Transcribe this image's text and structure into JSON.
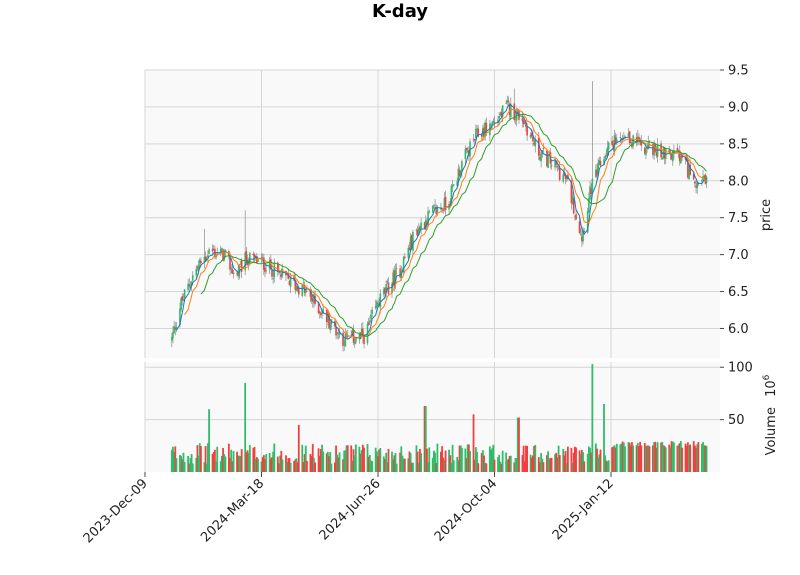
{
  "chart_data": {
    "title": "K-day",
    "type": "candlestick",
    "x_ticks": [
      "2023-Dec-09",
      "2024-Mar-18",
      "2024-Jun-26",
      "2024-Oct-04",
      "2025-Jan-12"
    ],
    "price_panel": {
      "ylabel": "price",
      "ylim": [
        5.6,
        9.5
      ],
      "yticks": [
        "6.0",
        "6.5",
        "7.0",
        "7.5",
        "8.0",
        "8.5",
        "9.0",
        "9.5"
      ],
      "close_keyframes": [
        {
          "date": "2024-01-01",
          "close": 5.85
        },
        {
          "date": "2024-01-08",
          "close": 6.3
        },
        {
          "date": "2024-01-20",
          "close": 6.75
        },
        {
          "date": "2024-02-02",
          "close": 7.05
        },
        {
          "date": "2024-02-15",
          "close": 7.0
        },
        {
          "date": "2024-02-25",
          "close": 6.7
        },
        {
          "date": "2024-03-05",
          "close": 6.95
        },
        {
          "date": "2024-03-18",
          "close": 6.9
        },
        {
          "date": "2024-04-05",
          "close": 6.7
        },
        {
          "date": "2024-04-25",
          "close": 6.5
        },
        {
          "date": "2024-05-15",
          "close": 6.1
        },
        {
          "date": "2024-05-28",
          "close": 5.85
        },
        {
          "date": "2024-06-15",
          "close": 5.9
        },
        {
          "date": "2024-06-26",
          "close": 6.35
        },
        {
          "date": "2024-07-15",
          "close": 6.8
        },
        {
          "date": "2024-07-28",
          "close": 7.3
        },
        {
          "date": "2024-08-10",
          "close": 7.55
        },
        {
          "date": "2024-08-25",
          "close": 7.7
        },
        {
          "date": "2024-09-05",
          "close": 8.2
        },
        {
          "date": "2024-09-18",
          "close": 8.6
        },
        {
          "date": "2024-10-04",
          "close": 8.8
        },
        {
          "date": "2024-10-15",
          "close": 9.0
        },
        {
          "date": "2024-10-28",
          "close": 8.85
        },
        {
          "date": "2024-11-10",
          "close": 8.4
        },
        {
          "date": "2024-11-25",
          "close": 8.2
        },
        {
          "date": "2024-12-05",
          "close": 8.0
        },
        {
          "date": "2024-12-18",
          "close": 7.25
        },
        {
          "date": "2024-12-26",
          "close": 7.9
        },
        {
          "date": "2025-01-05",
          "close": 8.3
        },
        {
          "date": "2025-01-12",
          "close": 8.5
        },
        {
          "date": "2025-02-01",
          "close": 8.55
        },
        {
          "date": "2025-02-20",
          "close": 8.4
        },
        {
          "date": "2025-03-10",
          "close": 8.35
        },
        {
          "date": "2025-03-25",
          "close": 8.0
        },
        {
          "date": "2025-04-05",
          "close": 7.95
        }
      ],
      "spikes": [
        {
          "date": "2024-01-28",
          "high": 7.35
        },
        {
          "date": "2024-03-03",
          "high": 7.6
        },
        {
          "date": "2024-12-28",
          "high": 9.35
        },
        {
          "date": "2024-10-20",
          "high": 9.25
        }
      ],
      "moving_averages": [
        {
          "window": 5,
          "color": "#1f77b4"
        },
        {
          "window": 10,
          "color": "#ff7f0e"
        },
        {
          "window": 20,
          "color": "#2ca02c"
        }
      ]
    },
    "volume_panel": {
      "ylabel": "Volume",
      "yunit": "10^6",
      "ylim": [
        0,
        105
      ],
      "yticks": [
        "50",
        "100"
      ],
      "base_level": 22,
      "notable_bars": [
        {
          "date": "2024-02-03",
          "value": 60
        },
        {
          "date": "2024-03-03",
          "value": 85
        },
        {
          "date": "2024-04-20",
          "value": 45
        },
        {
          "date": "2024-08-05",
          "value": 63
        },
        {
          "date": "2024-09-15",
          "value": 55
        },
        {
          "date": "2024-10-25",
          "value": 52
        },
        {
          "date": "2024-12-28",
          "value": 103
        },
        {
          "date": "2025-01-05",
          "value": 65
        }
      ]
    },
    "colors": {
      "up": "#2ebd69",
      "down": "#f23f3f",
      "panel_bg": "#f9f9f9",
      "grid": "#d6d6d6"
    }
  }
}
